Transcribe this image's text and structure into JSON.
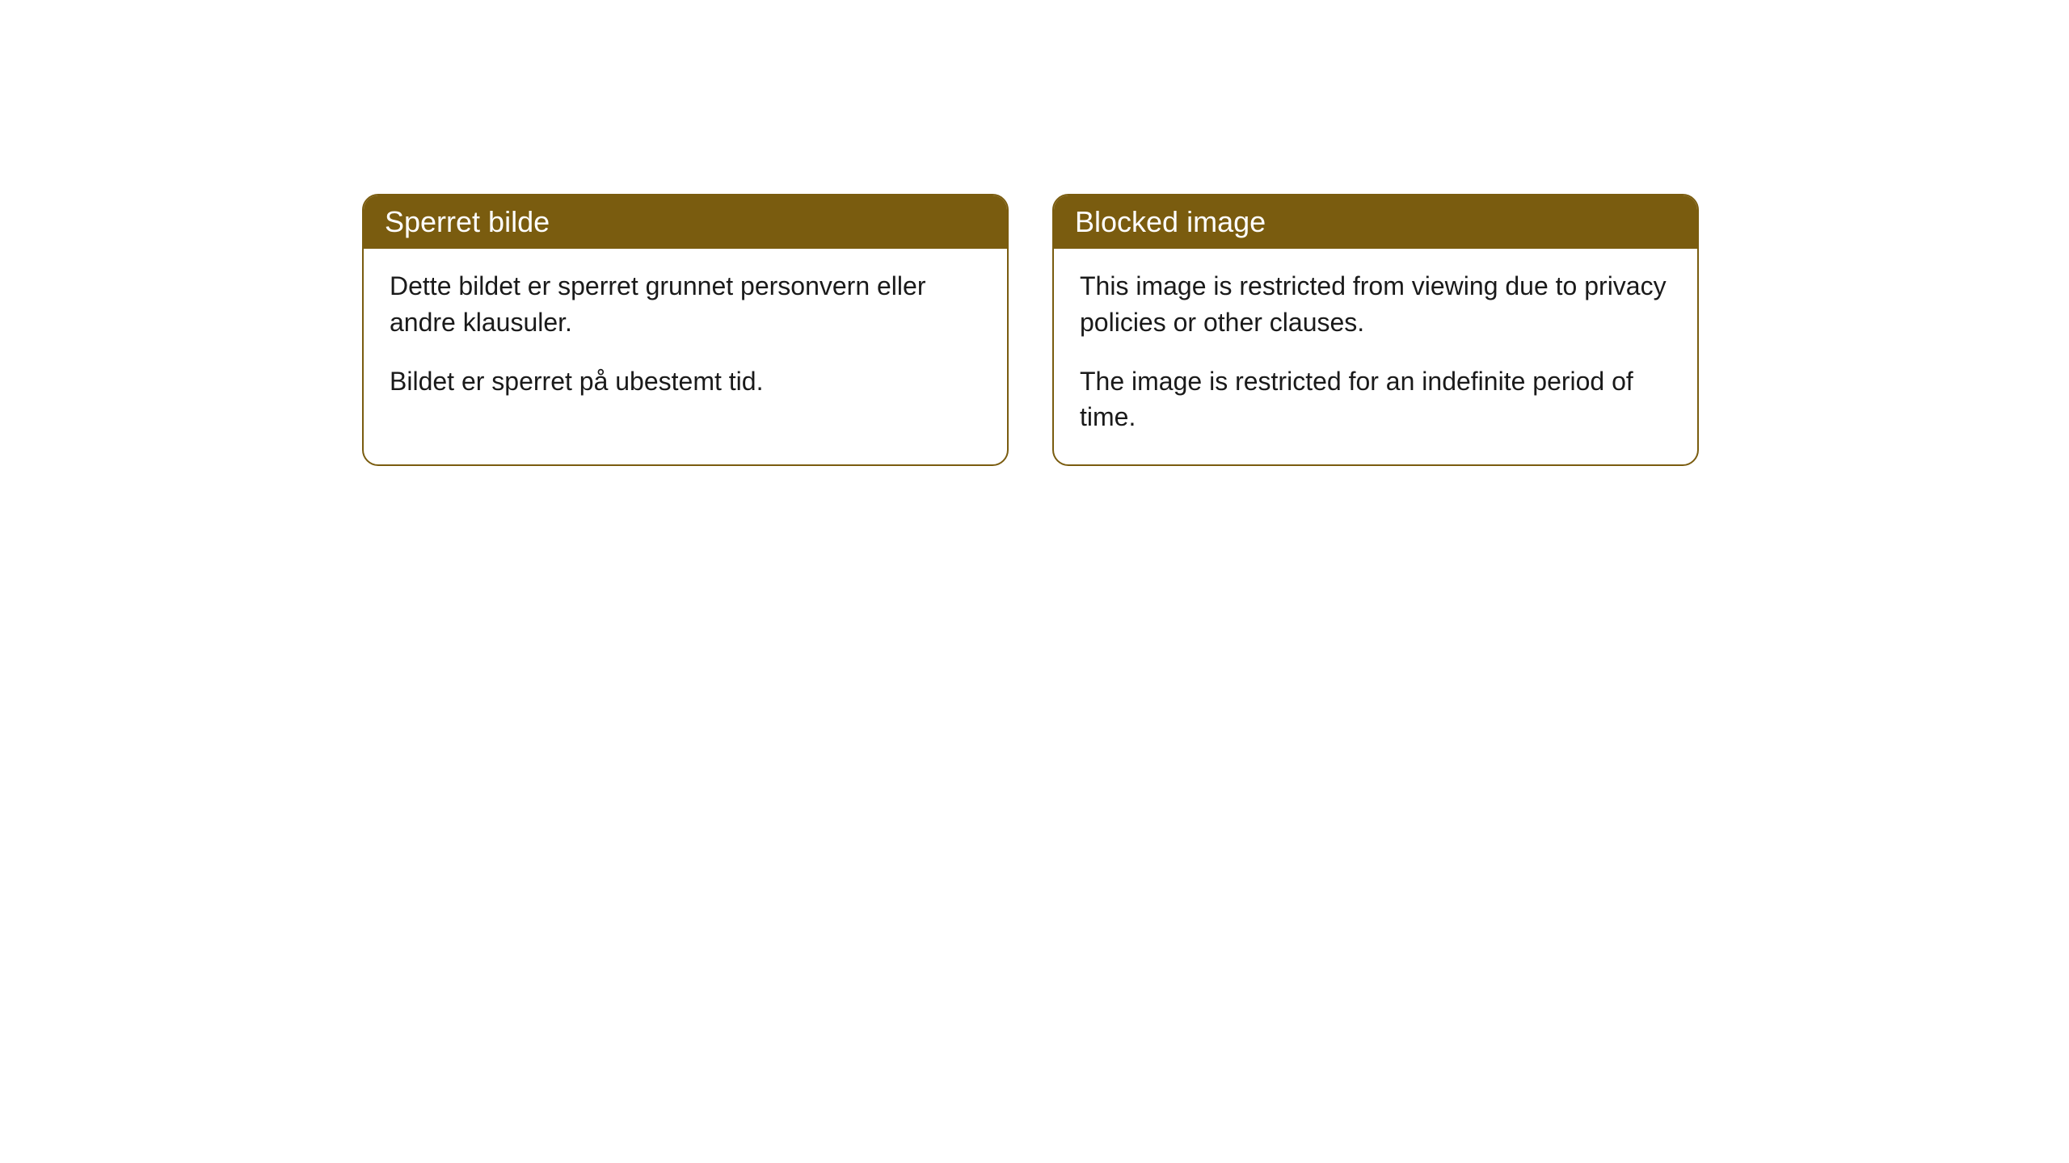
{
  "cards": [
    {
      "title": "Sperret bilde",
      "paragraph1": "Dette bildet er sperret grunnet personvern eller andre klausuler.",
      "paragraph2": "Bildet er sperret på ubestemt tid."
    },
    {
      "title": "Blocked image",
      "paragraph1": "This image is restricted from viewing due to privacy policies or other clauses.",
      "paragraph2": "The image is restricted for an indefinite period of time."
    }
  ],
  "style": {
    "header_bg_color": "#7a5c0f",
    "header_text_color": "#ffffff",
    "border_color": "#7a5c0f",
    "body_bg_color": "#ffffff",
    "body_text_color": "#1a1a1a",
    "border_radius": 20,
    "header_fontsize": 36,
    "body_fontsize": 32
  }
}
